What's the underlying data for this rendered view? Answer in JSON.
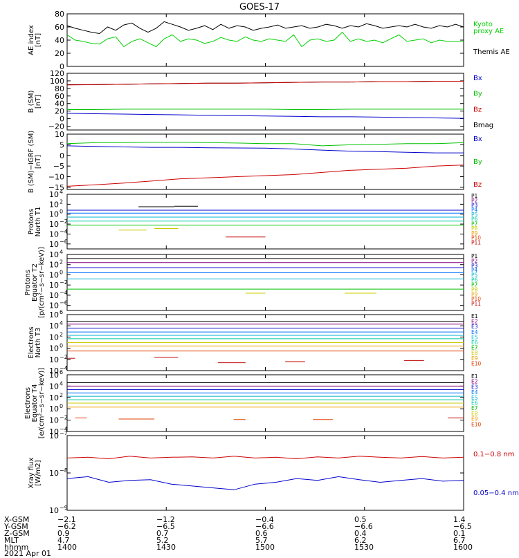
{
  "title": "GOES-17",
  "panels": [
    {
      "id": "ae",
      "ylabel": [
        "AE index",
        "[nT]"
      ],
      "scale": "linear",
      "ylim": [
        0,
        80
      ],
      "ticks": [
        "0",
        "20",
        "40",
        "60",
        "80"
      ],
      "tick_values": [
        0,
        20,
        40,
        60,
        80
      ],
      "legend": [
        {
          "text": "Kyoto",
          "color": "#00d000"
        },
        {
          "text": "proxy AE",
          "color": "#00d000"
        },
        {
          "text": "Themis AE",
          "color": "#000000"
        }
      ]
    },
    {
      "id": "bsm",
      "ylabel": [
        "B (SM)",
        "[nT]"
      ],
      "scale": "linear",
      "ylim": [
        -30,
        120
      ],
      "ticks": [
        "−20",
        "0",
        "20",
        "40",
        "60",
        "80",
        "100",
        "120"
      ],
      "tick_values": [
        -20,
        0,
        20,
        40,
        60,
        80,
        100,
        120
      ],
      "legend": [
        {
          "text": "Bx",
          "color": "#0000cc"
        },
        {
          "text": "By",
          "color": "#00c000"
        },
        {
          "text": "Bz",
          "color": "#cc0000"
        },
        {
          "text": "Bmag",
          "color": "#000000"
        }
      ]
    },
    {
      "id": "bigrf",
      "ylabel": [
        "B (SM)−IGRF (SM)",
        "[nT]"
      ],
      "scale": "linear",
      "ylim": [
        -16,
        10
      ],
      "ticks": [
        "−15",
        "−10",
        "−5",
        "0",
        "5",
        "10"
      ],
      "tick_values": [
        -15,
        -10,
        -5,
        0,
        5,
        10
      ],
      "legend": [
        {
          "text": "Bx",
          "color": "#0000cc"
        },
        {
          "text": "By",
          "color": "#00c000"
        },
        {
          "text": "Bz",
          "color": "#cc0000"
        }
      ]
    },
    {
      "id": "pnorth",
      "ylabel": [
        "Protons",
        "North T1"
      ],
      "scale": "log",
      "ylim": [
        -7,
        4
      ],
      "ticks": [
        "10",
        "10",
        "10",
        "10",
        "10",
        "10"
      ],
      "tick_exps": [
        "4",
        "2",
        "0",
        "−2",
        "−4",
        "−6"
      ],
      "tick_values": [
        4,
        2,
        0,
        -2,
        -4,
        -6
      ],
      "legend_small": [
        "P1",
        "P2",
        "P3",
        "P4",
        "P5",
        "P6",
        "P7",
        "P8",
        "P9",
        "P10",
        "P11"
      ]
    },
    {
      "id": "pequator",
      "ylabel": [
        "Protons",
        "Equator T2",
        "[p/(cm²−s−sr−keV)]"
      ],
      "scale": "log",
      "ylim": [
        -7,
        4
      ],
      "ticks": [
        "10",
        "10",
        "10",
        "10",
        "10",
        "10"
      ],
      "tick_exps": [
        "4",
        "2",
        "0",
        "−2",
        "−4",
        "−6"
      ],
      "tick_values": [
        4,
        2,
        0,
        -2,
        -4,
        -6
      ],
      "legend_small": [
        "P1",
        "P2",
        "P3",
        "P4",
        "P5",
        "P6",
        "P7",
        "P8",
        "P9",
        "P10",
        "P11"
      ]
    },
    {
      "id": "enorth",
      "ylabel": [
        "Electrons",
        "North T3"
      ],
      "scale": "log",
      "ylim": [
        -4,
        6
      ],
      "ticks": [
        "10",
        "10",
        "10",
        "10",
        "10",
        "10"
      ],
      "tick_exps": [
        "6",
        "4",
        "2",
        "0",
        "−2",
        "−4"
      ],
      "tick_values": [
        6,
        4,
        2,
        0,
        -2,
        -4
      ],
      "legend_small": [
        "E1",
        "E2",
        "E3",
        "E4",
        "E5",
        "E6",
        "E7",
        "E8",
        "E9",
        "E10"
      ]
    },
    {
      "id": "eequator",
      "ylabel": [
        "Electrons",
        "Equator T4",
        "[e/(cm²−s−sr−keV)]"
      ],
      "scale": "log",
      "ylim": [
        -4,
        6
      ],
      "ticks": [
        "10",
        "10",
        "10",
        "10",
        "10",
        "10"
      ],
      "tick_exps": [
        "6",
        "4",
        "2",
        "0",
        "−2",
        "−4"
      ],
      "tick_values": [
        6,
        4,
        2,
        0,
        -2,
        -4
      ],
      "legend_small": [
        "E1",
        "E2",
        "E3",
        "E4",
        "E5",
        "E6",
        "E7",
        "E8",
        "E9",
        "E10"
      ]
    },
    {
      "id": "xray",
      "ylabel": [
        "Xray flux",
        "[W/m2]"
      ],
      "scale": "log",
      "ylim": [
        -9,
        -7
      ],
      "ticks": [
        "10",
        "10",
        "10"
      ],
      "tick_exps": [
        "−7",
        "−8",
        "−9"
      ],
      "tick_values": [
        -7,
        -8,
        -9
      ],
      "legend": [
        {
          "text": "0.1−0.8 nm",
          "color": "#cc0000"
        },
        {
          "text": "0.05−0.4 nm",
          "color": "#0000cc"
        }
      ]
    }
  ],
  "small_legend_colors": {
    "P": [
      "#000000",
      "#800080",
      "#0000cc",
      "#0070ff",
      "#00b0d0",
      "#00c8a0",
      "#00c000",
      "#c8c800",
      "#f0a000",
      "#e04000",
      "#c00000"
    ],
    "E": [
      "#000000",
      "#800080",
      "#0000cc",
      "#0070ff",
      "#00b0d0",
      "#00c8a0",
      "#00c000",
      "#c8c800",
      "#f0a000",
      "#e04000"
    ]
  },
  "footer": {
    "row_labels": [
      "X-GSM",
      "Y-GSM",
      "Z-GSM",
      "MLT",
      "hhmm",
      "2021 Apr 01"
    ],
    "columns": [
      [
        "−2.1",
        "−6.2",
        "0.9",
        "4.7",
        "1400"
      ],
      [
        "−1.2",
        "−6.5",
        "0.7",
        "5.2",
        "1430"
      ],
      [
        "−0.4",
        "−6.6",
        "0.6",
        "5.7",
        "1500"
      ],
      [
        "0.5",
        "−6.6",
        "0.4",
        "6.2",
        "1530"
      ],
      [
        "1.4",
        "−6.5",
        "0.1",
        "6.7",
        "1600"
      ]
    ]
  },
  "chart_data": {
    "type": "line",
    "title": "GOES-17",
    "x_ticks": [
      "1400",
      "1430",
      "1500",
      "1530",
      "1600"
    ],
    "series": [
      {
        "panel": "ae",
        "name": "Themis AE",
        "color": "#000000",
        "values": [
          62,
          58,
          55,
          52,
          50,
          60,
          55,
          63,
          66,
          58,
          52,
          58,
          68,
          64,
          60,
          55,
          58,
          62,
          56,
          64,
          58,
          62,
          60,
          55,
          58,
          60,
          63,
          58,
          60,
          62,
          58,
          60,
          64,
          62,
          58,
          62,
          60,
          65,
          62,
          58,
          60,
          62,
          60,
          64,
          60,
          58,
          62,
          60,
          64,
          60
        ]
      },
      {
        "panel": "ae",
        "name": "Kyoto proxy AE",
        "color": "#00d000",
        "values": [
          48,
          40,
          38,
          35,
          34,
          42,
          45,
          30,
          38,
          42,
          36,
          30,
          42,
          48,
          38,
          42,
          40,
          35,
          38,
          44,
          40,
          38,
          45,
          40,
          38,
          42,
          40,
          38,
          48,
          30,
          40,
          42,
          38,
          40,
          52,
          38,
          42,
          38,
          40,
          36,
          42,
          48,
          38,
          40,
          42,
          36,
          40,
          38,
          38,
          38
        ]
      },
      {
        "panel": "bsm",
        "name": "Bmag",
        "color": "#000000",
        "values": [
          90,
          90,
          91,
          92,
          93,
          94,
          94,
          95,
          96,
          97,
          97,
          98,
          98,
          99,
          99
        ]
      },
      {
        "panel": "bsm",
        "name": "Bz",
        "color": "#cc0000",
        "values": [
          89,
          90,
          91,
          92,
          93,
          94,
          94,
          95,
          96,
          97,
          97,
          98,
          98,
          99,
          99
        ]
      },
      {
        "panel": "bsm",
        "name": "By",
        "color": "#00c000",
        "values": [
          24,
          24,
          25,
          25,
          25,
          25,
          25,
          25,
          24,
          24,
          25,
          25,
          25,
          25,
          25
        ]
      },
      {
        "panel": "bsm",
        "name": "Bx",
        "color": "#0000cc",
        "values": [
          14,
          13,
          12,
          11,
          10,
          9,
          8,
          7,
          6,
          5,
          5,
          4,
          3,
          2,
          1
        ]
      },
      {
        "panel": "bigrf",
        "name": "By",
        "color": "#00c000",
        "values": [
          5.5,
          6,
          6,
          6.2,
          6.2,
          6,
          5.8,
          5.5,
          5.5,
          4.5,
          5,
          5.2,
          5.5,
          5.5,
          6
        ]
      },
      {
        "panel": "bigrf",
        "name": "Bx",
        "color": "#0000cc",
        "values": [
          4.5,
          4.2,
          4,
          3.8,
          3.8,
          3.6,
          3.5,
          3.4,
          3,
          2.5,
          2,
          1.8,
          1.5,
          1.2,
          1.2
        ]
      },
      {
        "panel": "bigrf",
        "name": "Bz",
        "color": "#cc0000",
        "values": [
          -14.5,
          -13.8,
          -13,
          -12,
          -11,
          -10.5,
          -10,
          -9.5,
          -9,
          -8,
          -7,
          -6.5,
          -6,
          -5,
          -4.5
        ]
      },
      {
        "panel": "pnorth",
        "name": "P1",
        "color": "#000000",
        "values": [
          [
            0.18,
            0.27,
            1.5
          ],
          [
            0.27,
            0.33,
            1.6
          ]
        ]
      },
      {
        "panel": "pnorth",
        "name": "P3",
        "color": "#0000cc",
        "values": [
          [
            0,
            1,
            0.8
          ]
        ]
      },
      {
        "panel": "pnorth",
        "name": "P4",
        "color": "#0070ff",
        "values": [
          [
            0,
            1,
            0.2
          ]
        ]
      },
      {
        "panel": "pnorth",
        "name": "P5",
        "color": "#00b0d0",
        "values": [
          [
            0,
            1,
            -0.6
          ]
        ]
      },
      {
        "panel": "pnorth",
        "name": "P6",
        "color": "#00c8a0",
        "values": [
          [
            0,
            1,
            -1.4
          ]
        ]
      },
      {
        "panel": "pnorth",
        "name": "P7",
        "color": "#00c000",
        "values": [
          [
            0,
            1,
            -2.2
          ]
        ]
      },
      {
        "panel": "pnorth",
        "name": "P8",
        "color": "#c8c800",
        "values": [
          [
            0.13,
            0.2,
            -3.2
          ],
          [
            0.22,
            0.28,
            -2.9
          ]
        ]
      },
      {
        "panel": "pnorth",
        "name": "P11",
        "color": "#c00000",
        "values": [
          [
            0.4,
            0.5,
            -4.6
          ]
        ]
      },
      {
        "panel": "pequator",
        "name": "P1",
        "color": "#000000",
        "values": [
          [
            0,
            1,
            3.2
          ]
        ]
      },
      {
        "panel": "pequator",
        "name": "P2",
        "color": "#800080",
        "values": [
          [
            0,
            1,
            2.4
          ]
        ]
      },
      {
        "panel": "pequator",
        "name": "P3",
        "color": "#0000cc",
        "values": [
          [
            0,
            1,
            1.4
          ]
        ]
      },
      {
        "panel": "pequator",
        "name": "P4",
        "color": "#0070ff",
        "values": [
          [
            0,
            1,
            0.4
          ]
        ]
      },
      {
        "panel": "pequator",
        "name": "P5",
        "color": "#00b0d0",
        "values": [
          [
            0,
            1,
            -0.8
          ]
        ]
      },
      {
        "panel": "pequator",
        "name": "P7",
        "color": "#00c000",
        "values": [
          [
            0,
            1,
            -2.8
          ]
        ]
      },
      {
        "panel": "pequator",
        "name": "P8",
        "color": "#c8c800",
        "values": [
          [
            0.45,
            0.5,
            -3.6
          ],
          [
            0.7,
            0.78,
            -3.6
          ]
        ]
      },
      {
        "panel": "enorth",
        "name": "E1",
        "color": "#000000",
        "values": [
          [
            0,
            1,
            4.8
          ]
        ]
      },
      {
        "panel": "enorth",
        "name": "E2",
        "color": "#800080",
        "values": [
          [
            0,
            1,
            4.3
          ]
        ]
      },
      {
        "panel": "enorth",
        "name": "E3",
        "color": "#0000cc",
        "values": [
          [
            0,
            1,
            3.6
          ]
        ]
      },
      {
        "panel": "enorth",
        "name": "E4",
        "color": "#0070ff",
        "values": [
          [
            0,
            1,
            2.9
          ]
        ]
      },
      {
        "panel": "enorth",
        "name": "E5",
        "color": "#00b0d0",
        "values": [
          [
            0,
            1,
            2.3
          ]
        ]
      },
      {
        "panel": "enorth",
        "name": "E6",
        "color": "#00c8a0",
        "values": [
          [
            0,
            1,
            1.7
          ]
        ]
      },
      {
        "panel": "enorth",
        "name": "E7",
        "color": "#c8c800",
        "values": [
          [
            0,
            1,
            1.0
          ]
        ]
      },
      {
        "panel": "enorth",
        "name": "E8",
        "color": "#f0a000",
        "values": [
          [
            0,
            1,
            0.4
          ]
        ]
      },
      {
        "panel": "enorth",
        "name": "E9",
        "color": "#e04000",
        "values": [
          [
            0,
            1,
            -0.5
          ]
        ]
      },
      {
        "panel": "enorth",
        "name": "E10",
        "color": "#c00000",
        "values": [
          [
            0,
            0.02,
            -1.8
          ],
          [
            0.22,
            0.28,
            -1.6
          ],
          [
            0.38,
            0.45,
            -2.6
          ],
          [
            0.55,
            0.6,
            -2.4
          ],
          [
            0.85,
            0.9,
            -2.2
          ]
        ]
      },
      {
        "panel": "eequator",
        "name": "E1",
        "color": "#000000",
        "values": [
          [
            0,
            1,
            4.6
          ]
        ]
      },
      {
        "panel": "eequator",
        "name": "E2",
        "color": "#800080",
        "values": [
          [
            0,
            1,
            4.0
          ]
        ]
      },
      {
        "panel": "eequator",
        "name": "E3",
        "color": "#0000cc",
        "values": [
          [
            0,
            1,
            3.4
          ]
        ]
      },
      {
        "panel": "eequator",
        "name": "E4",
        "color": "#0070ff",
        "values": [
          [
            0,
            1,
            2.8
          ]
        ]
      },
      {
        "panel": "eequator",
        "name": "E5",
        "color": "#00b0d0",
        "values": [
          [
            0,
            1,
            2.2
          ]
        ]
      },
      {
        "panel": "eequator",
        "name": "E6",
        "color": "#00c8a0",
        "values": [
          [
            0,
            1,
            1.6
          ]
        ]
      },
      {
        "panel": "eequator",
        "name": "E7",
        "color": "#c8c800",
        "values": [
          [
            0,
            1,
            1.0
          ]
        ]
      },
      {
        "panel": "eequator",
        "name": "E8",
        "color": "#f0a000",
        "values": [
          [
            0,
            1,
            0.3
          ]
        ]
      },
      {
        "panel": "eequator",
        "name": "E9",
        "color": "#e04000",
        "values": [
          [
            0.02,
            0.05,
            -1.6
          ],
          [
            0.13,
            0.22,
            -1.8
          ],
          [
            0.42,
            0.45,
            -1.9
          ],
          [
            0.62,
            0.67,
            -1.9
          ]
        ]
      },
      {
        "panel": "eequator",
        "name": "E10",
        "color": "#c00000",
        "values": [
          [
            0.96,
            1,
            -1.6
          ]
        ]
      },
      {
        "panel": "xray",
        "name": "0.1−0.8 nm",
        "color": "#cc0000",
        "values": [
          -7.6,
          -7.58,
          -7.62,
          -7.55,
          -7.6,
          -7.58,
          -7.57,
          -7.6,
          -7.55,
          -7.6,
          -7.58,
          -7.62,
          -7.57,
          -7.6,
          -7.55,
          -7.58,
          -7.6,
          -7.56,
          -7.6,
          -7.58
        ]
      },
      {
        "panel": "xray",
        "name": "0.05−0.4 nm",
        "color": "#0000cc",
        "values": [
          -8.15,
          -8.1,
          -8.25,
          -8.2,
          -8.18,
          -8.3,
          -8.35,
          -8.4,
          -8.45,
          -8.3,
          -8.25,
          -8.15,
          -8.2,
          -8.1,
          -8.18,
          -8.25,
          -8.2,
          -8.15,
          -8.22,
          -8.2
        ]
      }
    ]
  }
}
